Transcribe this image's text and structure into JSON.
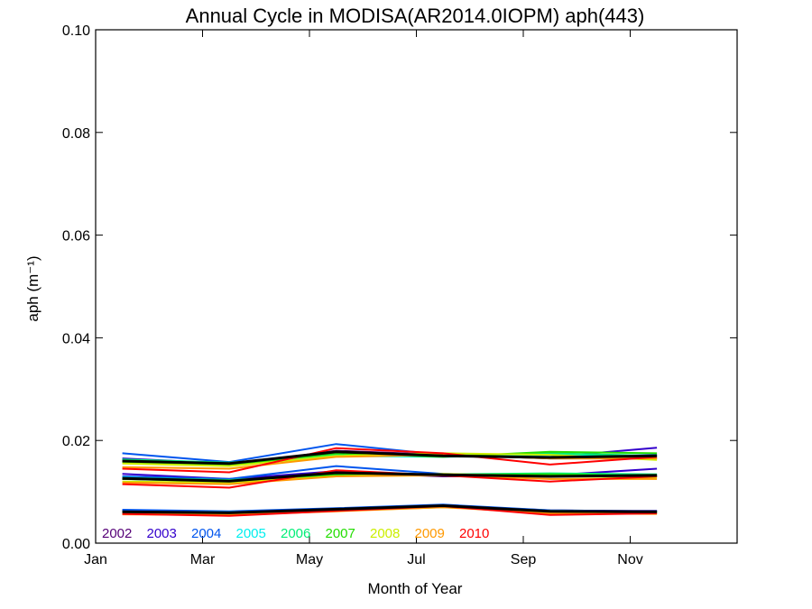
{
  "chart_data": {
    "type": "line",
    "title": "Annual Cycle in MODISA(AR2014.0IOPM) aph(443)",
    "xlabel": "Month of Year",
    "ylabel": "aph (m⁻¹)",
    "xlim": [
      1,
      13
    ],
    "ylim": [
      0,
      0.1
    ],
    "x_ticks": [
      {
        "value": 1,
        "label": "Jan"
      },
      {
        "value": 3,
        "label": "Mar"
      },
      {
        "value": 5,
        "label": "May"
      },
      {
        "value": 7,
        "label": "Jul"
      },
      {
        "value": 9,
        "label": "Sep"
      },
      {
        "value": 11,
        "label": "Nov"
      }
    ],
    "y_ticks": [
      {
        "value": 0,
        "label": "0.00"
      },
      {
        "value": 0.02,
        "label": "0.02"
      },
      {
        "value": 0.04,
        "label": "0.04"
      },
      {
        "value": 0.06,
        "label": "0.06"
      },
      {
        "value": 0.08,
        "label": "0.08"
      },
      {
        "value": 0.1,
        "label": "0.10"
      }
    ],
    "grid": false,
    "legend_position": "bottom-left",
    "x": [
      1.5,
      3.5,
      5.5,
      7.5,
      9.5,
      11.5
    ],
    "series": [
      {
        "name": "2002",
        "color": "#550077",
        "upper": [
          0.016,
          0.0152,
          0.018,
          0.0172,
          0.0165,
          0.0165
        ],
        "mid": [
          0.0125,
          0.0123,
          0.0138,
          0.013,
          0.013,
          0.013
        ],
        "lower": [
          0.0062,
          0.006,
          0.0067,
          0.0073,
          0.0064,
          0.0062
        ]
      },
      {
        "name": "2003",
        "color": "#3300CC",
        "upper": [
          0.0165,
          0.0155,
          0.0178,
          0.017,
          0.0168,
          0.0186
        ],
        "mid": [
          0.0135,
          0.0125,
          0.014,
          0.0132,
          0.0132,
          0.0145
        ],
        "lower": [
          0.0063,
          0.0061,
          0.0066,
          0.0074,
          0.0063,
          0.0063
        ]
      },
      {
        "name": "2004",
        "color": "#0055EE",
        "upper": [
          0.0175,
          0.0158,
          0.0193,
          0.0172,
          0.0167,
          0.0172
        ],
        "mid": [
          0.013,
          0.0125,
          0.015,
          0.0135,
          0.013,
          0.0132
        ],
        "lower": [
          0.0065,
          0.0062,
          0.0068,
          0.0075,
          0.0064,
          0.0062
        ]
      },
      {
        "name": "2005",
        "color": "#00EEEE",
        "upper": [
          0.0162,
          0.0155,
          0.017,
          0.0168,
          0.0172,
          0.017
        ],
        "mid": [
          0.0128,
          0.0122,
          0.0135,
          0.0133,
          0.0135,
          0.0133
        ],
        "lower": [
          0.0061,
          0.006,
          0.0065,
          0.0072,
          0.0063,
          0.0061
        ]
      },
      {
        "name": "2006",
        "color": "#00EE77",
        "upper": [
          0.0163,
          0.0157,
          0.0172,
          0.017,
          0.0175,
          0.017
        ],
        "mid": [
          0.0127,
          0.0123,
          0.0134,
          0.0134,
          0.0136,
          0.0134
        ],
        "lower": [
          0.0061,
          0.006,
          0.0065,
          0.0072,
          0.0063,
          0.0061
        ]
      },
      {
        "name": "2007",
        "color": "#22DD00",
        "upper": [
          0.0158,
          0.0152,
          0.0175,
          0.0168,
          0.0178,
          0.0175
        ],
        "mid": [
          0.0125,
          0.012,
          0.0133,
          0.0133,
          0.0134,
          0.0131
        ],
        "lower": [
          0.006,
          0.0059,
          0.0064,
          0.0071,
          0.0062,
          0.006
        ]
      },
      {
        "name": "2008",
        "color": "#CCEE00",
        "upper": [
          0.0155,
          0.015,
          0.017,
          0.0175,
          0.0172,
          0.0162
        ],
        "mid": [
          0.012,
          0.0118,
          0.013,
          0.0135,
          0.013,
          0.0128
        ],
        "lower": [
          0.0058,
          0.0057,
          0.0063,
          0.007,
          0.0061,
          0.0058
        ]
      },
      {
        "name": "2009",
        "color": "#FF9900",
        "upper": [
          0.0148,
          0.0145,
          0.0168,
          0.0172,
          0.0165,
          0.0165
        ],
        "mid": [
          0.0118,
          0.0115,
          0.013,
          0.0132,
          0.0125,
          0.0125
        ],
        "lower": [
          0.0056,
          0.0055,
          0.0062,
          0.007,
          0.0058,
          0.0057
        ]
      },
      {
        "name": "2010",
        "color": "#FF0000",
        "upper": [
          0.0145,
          0.0138,
          0.0185,
          0.0175,
          0.0153,
          0.0168
        ],
        "mid": [
          0.0115,
          0.0108,
          0.0142,
          0.0132,
          0.012,
          0.013
        ],
        "lower": [
          0.0057,
          0.0053,
          0.0063,
          0.0072,
          0.0055,
          0.0058
        ]
      },
      {
        "name": "",
        "color": "#000000",
        "upper": [
          0.016,
          0.0155,
          0.0178,
          0.017,
          0.0167,
          0.017
        ],
        "mid": [
          0.0126,
          0.0121,
          0.0137,
          0.0133,
          0.013,
          0.0132
        ],
        "lower": [
          0.0061,
          0.0059,
          0.0066,
          0.0073,
          0.0062,
          0.0061
        ]
      }
    ]
  }
}
